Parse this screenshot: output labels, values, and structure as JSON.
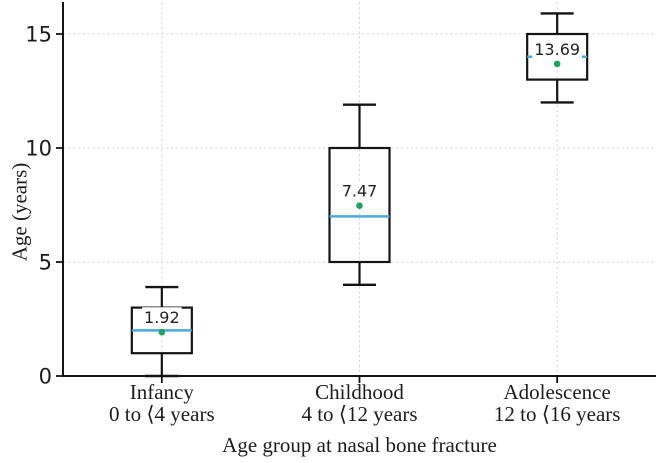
{
  "chart_data": {
    "type": "boxplot",
    "title": "",
    "xlabel": "Age group at nasal bone fracture",
    "ylabel": "Age (years)",
    "ylim": [
      0,
      16.3
    ],
    "yticks": [
      0,
      5,
      10,
      15
    ],
    "grid": true,
    "grid_style": "dashed",
    "legend": "none",
    "categories": [
      {
        "label": "Infancy",
        "sublabel": "0 to ⟨4 years",
        "whisker_low": 0,
        "q1": 1,
        "median": 2,
        "q3": 3,
        "whisker_high": 3.9,
        "mean": 1.92,
        "mean_label": "1.92"
      },
      {
        "label": "Childhood",
        "sublabel": "4 to ⟨12 years",
        "whisker_low": 4,
        "q1": 5,
        "median": 7,
        "q3": 10,
        "whisker_high": 11.9,
        "mean": 7.47,
        "mean_label": "7.47"
      },
      {
        "label": "Adolescence",
        "sublabel": "12 to ⟨16 years",
        "whisker_low": 12,
        "q1": 13,
        "median": 14,
        "q3": 15,
        "whisker_high": 15.9,
        "mean": 13.69,
        "mean_label": "13.69"
      }
    ],
    "colors": {
      "axis": "#141414",
      "box_stroke": "#141414",
      "median_line": "#46abd8",
      "mean_dot": "#20a164",
      "grid": "#d9d9d9",
      "text": "#1c1c1c"
    }
  }
}
